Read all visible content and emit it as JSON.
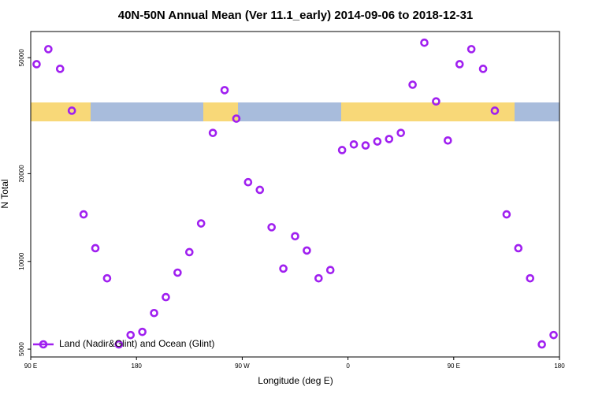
{
  "chart_data": {
    "type": "scatter",
    "title": "40N-50N Annual Mean (Ver 11.1_early)   2014-09-06 to 2018-12-31",
    "x_label": "Longitude (deg E)",
    "y_label": "N Total",
    "log_scale_y": true,
    "legend": "bottomleft",
    "xlim": [
      90,
      540
    ],
    "ylim": [
      4700,
      61500
    ],
    "xticks": [
      {
        "value": 90,
        "label": "90 E"
      },
      {
        "value": 180,
        "label": "180"
      },
      {
        "value": 270,
        "label": "90 W"
      },
      {
        "value": 360,
        "label": "0"
      },
      {
        "value": 450,
        "label": "90 E"
      },
      {
        "value": 540,
        "label": "180"
      }
    ],
    "yticks": [
      5000,
      10000,
      20000,
      50000
    ],
    "x": [
      95,
      105,
      115,
      125,
      135,
      145,
      155,
      165,
      175,
      185,
      195,
      205,
      215,
      225,
      235,
      245,
      255,
      265,
      275,
      285,
      295,
      305,
      315,
      325,
      335,
      345,
      355,
      365,
      375,
      385,
      395,
      405,
      415,
      425,
      435,
      445,
      455,
      465,
      475,
      485,
      495,
      505,
      515,
      525,
      535
    ],
    "series": [
      {
        "name": "Land (Nadir&Glint) and Ocean (Glint)",
        "color": "#a020f0",
        "values": [
          47500,
          53500,
          45800,
          32900,
          14500,
          11100,
          8750,
          5190,
          5590,
          5730,
          6650,
          7540,
          9150,
          10760,
          13500,
          27600,
          38700,
          30900,
          18700,
          17600,
          13100,
          9450,
          12200,
          10900,
          8750,
          9340,
          24100,
          25200,
          25000,
          25800,
          26300,
          27600,
          40400,
          56300,
          35400,
          26000,
          47500,
          53500,
          45800,
          32900,
          14500,
          11100,
          8750,
          5190,
          5590
        ]
      }
    ]
  }
}
